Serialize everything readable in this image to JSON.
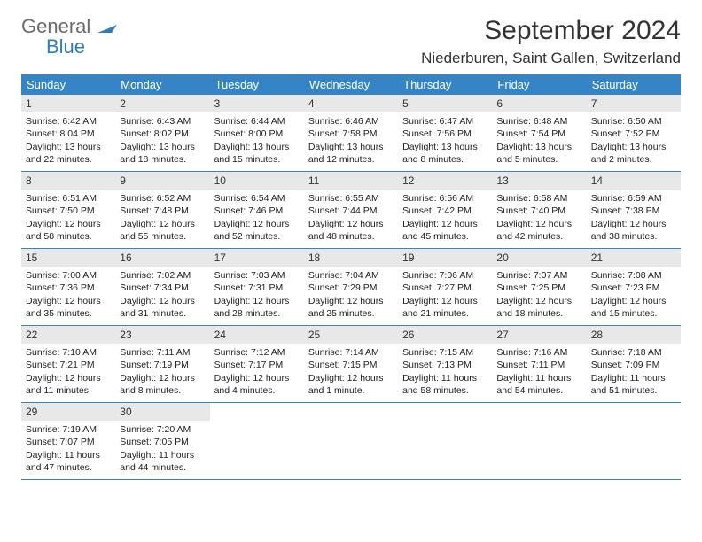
{
  "brand": {
    "name_top": "General",
    "name_bottom": "Blue"
  },
  "title": "September 2024",
  "location": "Niederburen, Saint Gallen, Switzerland",
  "colors": {
    "header_bg": "#3585c6",
    "header_text": "#ffffff",
    "daynum_bg": "#e8e8e8",
    "divider": "#3585c6",
    "body_text": "#222222",
    "brand_gray": "#6b6b6b",
    "brand_blue": "#2d7dc0"
  },
  "weekdays": [
    "Sunday",
    "Monday",
    "Tuesday",
    "Wednesday",
    "Thursday",
    "Friday",
    "Saturday"
  ],
  "weeks": [
    [
      {
        "n": "1",
        "sr": "Sunrise: 6:42 AM",
        "ss": "Sunset: 8:04 PM",
        "d1": "Daylight: 13 hours",
        "d2": "and 22 minutes."
      },
      {
        "n": "2",
        "sr": "Sunrise: 6:43 AM",
        "ss": "Sunset: 8:02 PM",
        "d1": "Daylight: 13 hours",
        "d2": "and 18 minutes."
      },
      {
        "n": "3",
        "sr": "Sunrise: 6:44 AM",
        "ss": "Sunset: 8:00 PM",
        "d1": "Daylight: 13 hours",
        "d2": "and 15 minutes."
      },
      {
        "n": "4",
        "sr": "Sunrise: 6:46 AM",
        "ss": "Sunset: 7:58 PM",
        "d1": "Daylight: 13 hours",
        "d2": "and 12 minutes."
      },
      {
        "n": "5",
        "sr": "Sunrise: 6:47 AM",
        "ss": "Sunset: 7:56 PM",
        "d1": "Daylight: 13 hours",
        "d2": "and 8 minutes."
      },
      {
        "n": "6",
        "sr": "Sunrise: 6:48 AM",
        "ss": "Sunset: 7:54 PM",
        "d1": "Daylight: 13 hours",
        "d2": "and 5 minutes."
      },
      {
        "n": "7",
        "sr": "Sunrise: 6:50 AM",
        "ss": "Sunset: 7:52 PM",
        "d1": "Daylight: 13 hours",
        "d2": "and 2 minutes."
      }
    ],
    [
      {
        "n": "8",
        "sr": "Sunrise: 6:51 AM",
        "ss": "Sunset: 7:50 PM",
        "d1": "Daylight: 12 hours",
        "d2": "and 58 minutes."
      },
      {
        "n": "9",
        "sr": "Sunrise: 6:52 AM",
        "ss": "Sunset: 7:48 PM",
        "d1": "Daylight: 12 hours",
        "d2": "and 55 minutes."
      },
      {
        "n": "10",
        "sr": "Sunrise: 6:54 AM",
        "ss": "Sunset: 7:46 PM",
        "d1": "Daylight: 12 hours",
        "d2": "and 52 minutes."
      },
      {
        "n": "11",
        "sr": "Sunrise: 6:55 AM",
        "ss": "Sunset: 7:44 PM",
        "d1": "Daylight: 12 hours",
        "d2": "and 48 minutes."
      },
      {
        "n": "12",
        "sr": "Sunrise: 6:56 AM",
        "ss": "Sunset: 7:42 PM",
        "d1": "Daylight: 12 hours",
        "d2": "and 45 minutes."
      },
      {
        "n": "13",
        "sr": "Sunrise: 6:58 AM",
        "ss": "Sunset: 7:40 PM",
        "d1": "Daylight: 12 hours",
        "d2": "and 42 minutes."
      },
      {
        "n": "14",
        "sr": "Sunrise: 6:59 AM",
        "ss": "Sunset: 7:38 PM",
        "d1": "Daylight: 12 hours",
        "d2": "and 38 minutes."
      }
    ],
    [
      {
        "n": "15",
        "sr": "Sunrise: 7:00 AM",
        "ss": "Sunset: 7:36 PM",
        "d1": "Daylight: 12 hours",
        "d2": "and 35 minutes."
      },
      {
        "n": "16",
        "sr": "Sunrise: 7:02 AM",
        "ss": "Sunset: 7:34 PM",
        "d1": "Daylight: 12 hours",
        "d2": "and 31 minutes."
      },
      {
        "n": "17",
        "sr": "Sunrise: 7:03 AM",
        "ss": "Sunset: 7:31 PM",
        "d1": "Daylight: 12 hours",
        "d2": "and 28 minutes."
      },
      {
        "n": "18",
        "sr": "Sunrise: 7:04 AM",
        "ss": "Sunset: 7:29 PM",
        "d1": "Daylight: 12 hours",
        "d2": "and 25 minutes."
      },
      {
        "n": "19",
        "sr": "Sunrise: 7:06 AM",
        "ss": "Sunset: 7:27 PM",
        "d1": "Daylight: 12 hours",
        "d2": "and 21 minutes."
      },
      {
        "n": "20",
        "sr": "Sunrise: 7:07 AM",
        "ss": "Sunset: 7:25 PM",
        "d1": "Daylight: 12 hours",
        "d2": "and 18 minutes."
      },
      {
        "n": "21",
        "sr": "Sunrise: 7:08 AM",
        "ss": "Sunset: 7:23 PM",
        "d1": "Daylight: 12 hours",
        "d2": "and 15 minutes."
      }
    ],
    [
      {
        "n": "22",
        "sr": "Sunrise: 7:10 AM",
        "ss": "Sunset: 7:21 PM",
        "d1": "Daylight: 12 hours",
        "d2": "and 11 minutes."
      },
      {
        "n": "23",
        "sr": "Sunrise: 7:11 AM",
        "ss": "Sunset: 7:19 PM",
        "d1": "Daylight: 12 hours",
        "d2": "and 8 minutes."
      },
      {
        "n": "24",
        "sr": "Sunrise: 7:12 AM",
        "ss": "Sunset: 7:17 PM",
        "d1": "Daylight: 12 hours",
        "d2": "and 4 minutes."
      },
      {
        "n": "25",
        "sr": "Sunrise: 7:14 AM",
        "ss": "Sunset: 7:15 PM",
        "d1": "Daylight: 12 hours",
        "d2": "and 1 minute."
      },
      {
        "n": "26",
        "sr": "Sunrise: 7:15 AM",
        "ss": "Sunset: 7:13 PM",
        "d1": "Daylight: 11 hours",
        "d2": "and 58 minutes."
      },
      {
        "n": "27",
        "sr": "Sunrise: 7:16 AM",
        "ss": "Sunset: 7:11 PM",
        "d1": "Daylight: 11 hours",
        "d2": "and 54 minutes."
      },
      {
        "n": "28",
        "sr": "Sunrise: 7:18 AM",
        "ss": "Sunset: 7:09 PM",
        "d1": "Daylight: 11 hours",
        "d2": "and 51 minutes."
      }
    ],
    [
      {
        "n": "29",
        "sr": "Sunrise: 7:19 AM",
        "ss": "Sunset: 7:07 PM",
        "d1": "Daylight: 11 hours",
        "d2": "and 47 minutes."
      },
      {
        "n": "30",
        "sr": "Sunrise: 7:20 AM",
        "ss": "Sunset: 7:05 PM",
        "d1": "Daylight: 11 hours",
        "d2": "and 44 minutes."
      },
      null,
      null,
      null,
      null,
      null
    ]
  ]
}
